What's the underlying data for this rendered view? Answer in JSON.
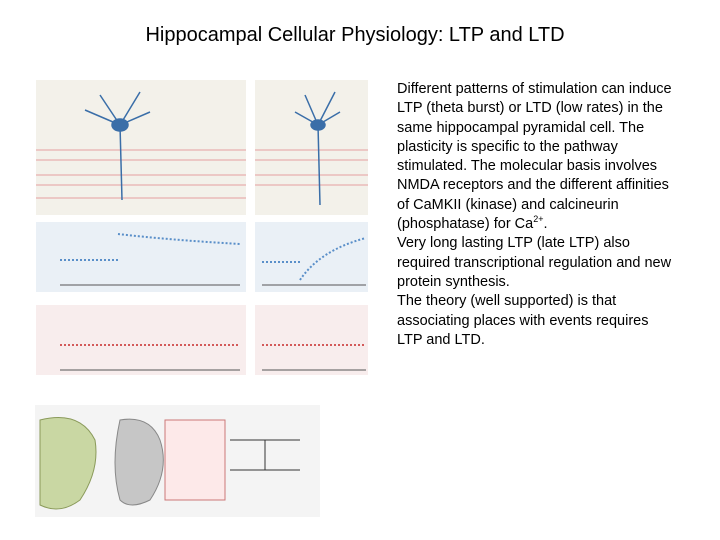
{
  "header": {
    "title": "Hippocampal Cellular Physiology: LTP and LTD"
  },
  "body": {
    "lines": [
      "Different patterns of stimulation can induce",
      "LTP (theta burst) or LTD (low rates) in the",
      "same hippocampal pyramidal cell. The",
      "plasticity is specific to the pathway",
      "stimulated. The molecular basis involves",
      "NMDA receptors and the different affinities",
      "of CaMKII (kinase) and calcineurin",
      {
        "text": "(phosphatase) for Ca",
        "superscript": "2+",
        "tail": "."
      },
      "Very long lasting LTP (late LTP) also",
      "required transcriptional regulation and new",
      "protein synthesis.",
      "The theory (well supported) is that",
      "associating places with events requires",
      "LTP and LTD."
    ]
  }
}
